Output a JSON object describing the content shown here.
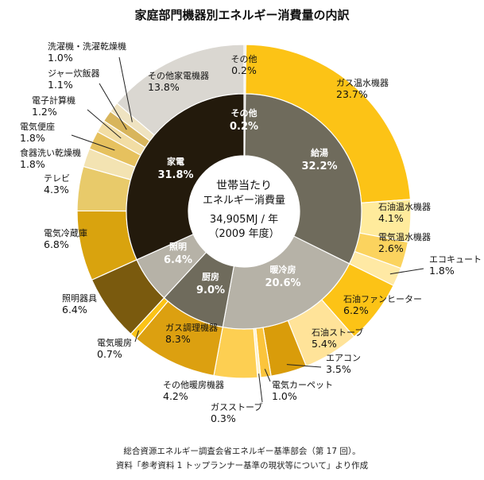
{
  "title": "家庭部門機器別エネルギー消費量の内訳",
  "center": {
    "line1": "世帯当たり",
    "line2": "エネルギー消費量",
    "line3": "34,905MJ / 年",
    "line4": "（2009 年度）"
  },
  "source": {
    "line1": "総合資源エネルギー調査会省エネルギー基準部会（第 17 回）。",
    "line2": "資料「参考資料 1 トップランナー基準の現状等について」より作成"
  },
  "chart_data": {
    "type": "pie",
    "subtype": "nested-donut",
    "unit": "%",
    "inner": [
      {
        "name": "その他",
        "value": 0.2,
        "color": "#9c9480"
      },
      {
        "name": "給湯",
        "value": 32.2,
        "color": "#6f6b5c"
      },
      {
        "name": "暖冷房",
        "value": 20.6,
        "color": "#b6b2a7"
      },
      {
        "name": "厨房",
        "value": 9.0,
        "color": "#6f6b5c"
      },
      {
        "name": "照明",
        "value": 6.4,
        "color": "#b6b2a7"
      },
      {
        "name": "家電",
        "value": 31.8,
        "color": "#231a0c"
      }
    ],
    "outer": [
      {
        "name": "ガス温水機器",
        "value": 23.7,
        "color": "#fcc316"
      },
      {
        "name": "石油温水機器",
        "value": 4.1,
        "color": "#ffeb9c"
      },
      {
        "name": "電気温水機器",
        "value": 2.6,
        "color": "#fbd35e"
      },
      {
        "name": "エコキュート",
        "value": 1.8,
        "color": "#ffe9a4"
      },
      {
        "name": "石油ファンヒーター",
        "value": 6.2,
        "color": "#fcc316"
      },
      {
        "name": "石油ストーブ",
        "value": 5.4,
        "color": "#ffe399"
      },
      {
        "name": "エアコン",
        "value": 3.5,
        "color": "#d99c0a"
      },
      {
        "name": "電気カーペット",
        "value": 1.0,
        "color": "#fbc43c"
      },
      {
        "name": "ガスストーブ",
        "value": 0.3,
        "color": "#fff2c6"
      },
      {
        "name": "その他暖房機器",
        "value": 4.2,
        "color": "#fdcf52"
      },
      {
        "name": "ガス調理機器",
        "value": 8.3,
        "color": "#dca010"
      },
      {
        "name": "電気暖房",
        "value": 0.7,
        "color": "#fbc316"
      },
      {
        "name": "照明器具",
        "value": 6.4,
        "color": "#7a5a0e"
      },
      {
        "name": "電気冷蔵庫",
        "value": 6.8,
        "color": "#d9a30e"
      },
      {
        "name": "テレビ",
        "value": 4.3,
        "color": "#e8ca6a"
      },
      {
        "name": "食器洗い乾燥機",
        "value": 1.8,
        "color": "#f3e3b2"
      },
      {
        "name": "電気便座",
        "value": 1.8,
        "color": "#e6c15e"
      },
      {
        "name": "電子計算機",
        "value": 1.2,
        "color": "#f2dda4"
      },
      {
        "name": "ジャー炊飯器",
        "value": 1.1,
        "color": "#d8b55c"
      },
      {
        "name": "洗濯機・洗濯乾燥機",
        "value": 1.0,
        "color": "#efe3c1"
      },
      {
        "name": "その他家電機器",
        "value": 13.8,
        "color": "#dad7d1"
      },
      {
        "name": "その他",
        "value": 0.2,
        "color": "#efede8"
      }
    ],
    "inner_labels": [
      {
        "name": "その他",
        "value": "0.2%"
      },
      {
        "name": "給湯",
        "value": "32.2%"
      },
      {
        "name": "暖冷房",
        "value": "20.6%"
      },
      {
        "name": "厨房",
        "value": "9.0%"
      },
      {
        "name": "照明",
        "value": "6.4%"
      },
      {
        "name": "家電",
        "value": "31.8%"
      }
    ],
    "outer_labels": [
      {
        "name": "その他",
        "value": "0.2%"
      },
      {
        "name": "ガス温水機器",
        "value": "23.7%"
      },
      {
        "name": "石油温水機器",
        "value": "4.1%"
      },
      {
        "name": "電気温水機器",
        "value": "2.6%"
      },
      {
        "name": "エコキュート",
        "value": "1.8%"
      },
      {
        "name": "石油ファンヒーター",
        "value": "6.2%"
      },
      {
        "name": "石油ストーブ",
        "value": "5.4%"
      },
      {
        "name": "エアコン",
        "value": "3.5%"
      },
      {
        "name": "電気カーペット",
        "value": "1.0%"
      },
      {
        "name": "ガスストーブ",
        "value": "0.3%"
      },
      {
        "name": "その他暖房機器",
        "value": "4.2%"
      },
      {
        "name": "ガス調理機器",
        "value": "8.3%"
      },
      {
        "name": "電気暖房",
        "value": "0.7%"
      },
      {
        "name": "照明器具",
        "value": "6.4%"
      },
      {
        "name": "電気冷蔵庫",
        "value": "6.8%"
      },
      {
        "name": "テレビ",
        "value": "4.3%"
      },
      {
        "name": "食器洗い乾燥機",
        "value": "1.8%"
      },
      {
        "name": "電気便座",
        "value": "1.8%"
      },
      {
        "name": "電子計算機",
        "value": "1.2%"
      },
      {
        "name": "ジャー炊飯器",
        "value": "1.1%"
      },
      {
        "name": "洗濯機・洗濯乾燥機",
        "value": "1.0%"
      },
      {
        "name": "その他家電機器",
        "value": "13.8%"
      }
    ]
  }
}
